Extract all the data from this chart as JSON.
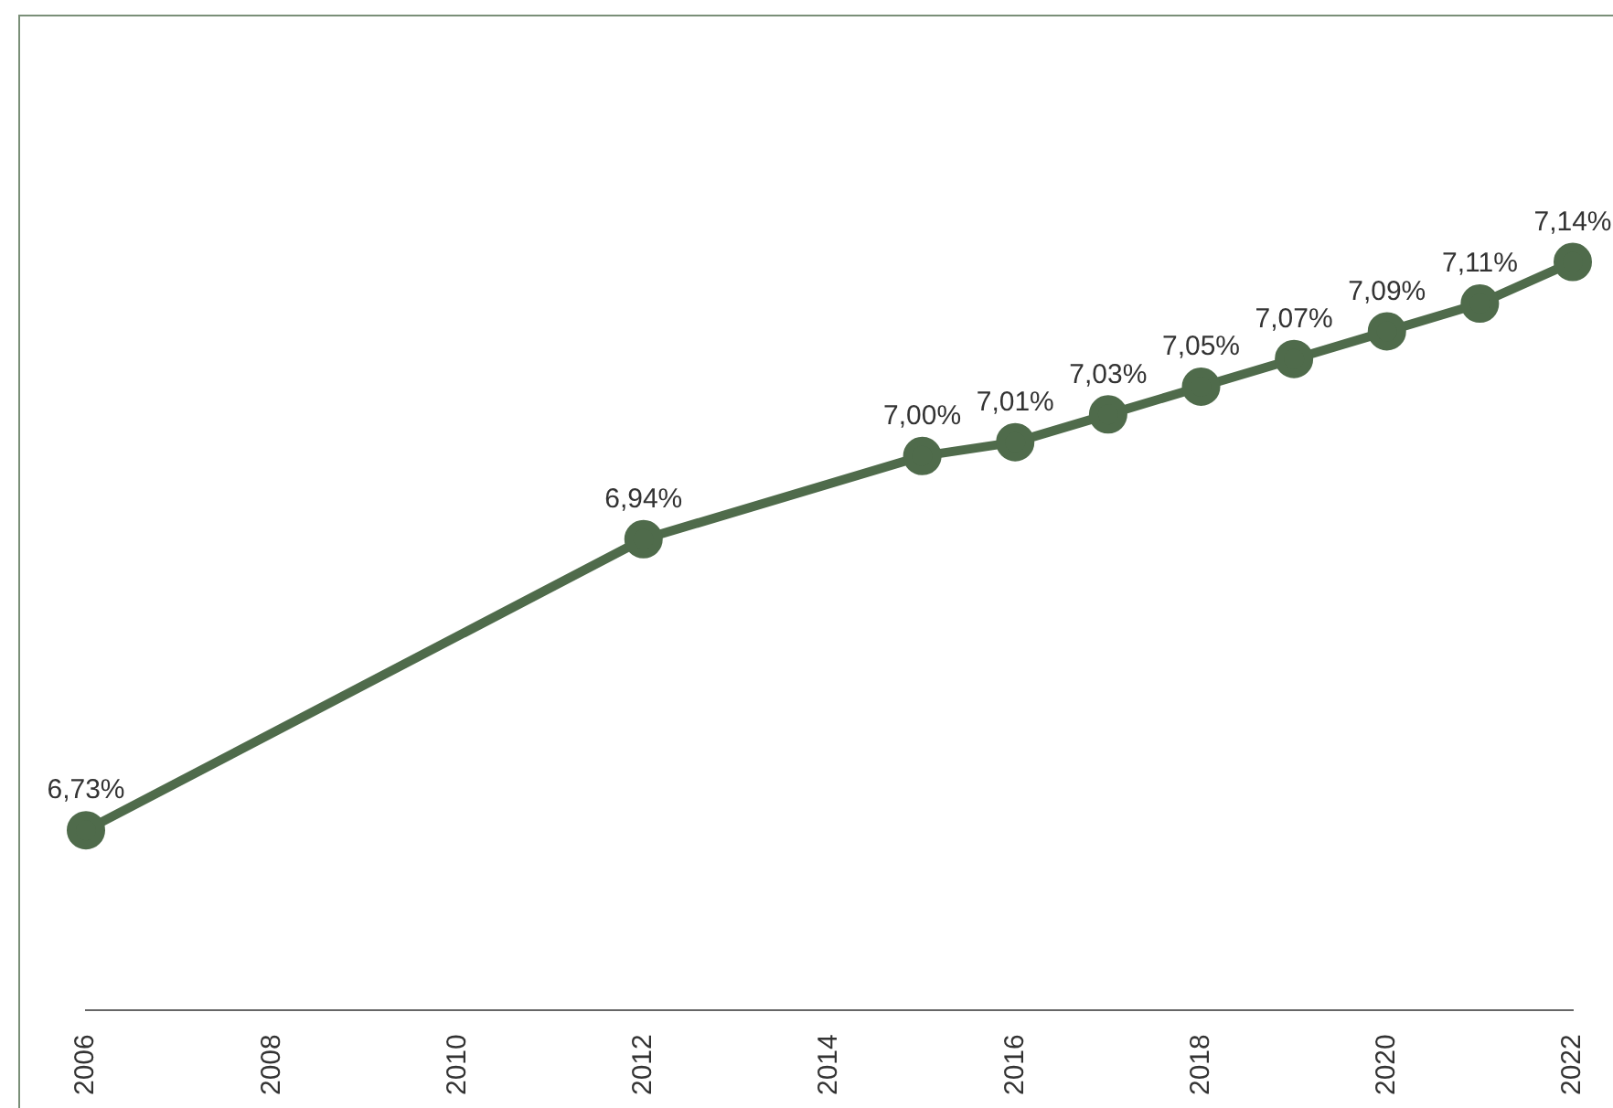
{
  "chart_data": {
    "type": "line",
    "x": [
      2006,
      2012,
      2015,
      2016,
      2017,
      2018,
      2019,
      2020,
      2021,
      2022
    ],
    "values": [
      6.73,
      6.94,
      7.0,
      7.01,
      7.03,
      7.05,
      7.07,
      7.09,
      7.11,
      7.14
    ],
    "value_labels": [
      "6,73%",
      "6,94%",
      "7,00%",
      "7,01%",
      "7,03%",
      "7,05%",
      "7,07%",
      "7,09%",
      "7,11%",
      "7,14%"
    ],
    "color": "#4f6b4b",
    "marker": "circle",
    "line_style": "solid",
    "grid": false,
    "legend": false,
    "tick_labels": "x",
    "xlim": [
      2006,
      2022
    ],
    "xticks": [
      2006,
      2008,
      2010,
      2012,
      2014,
      2016,
      2018,
      2020,
      2022
    ]
  }
}
